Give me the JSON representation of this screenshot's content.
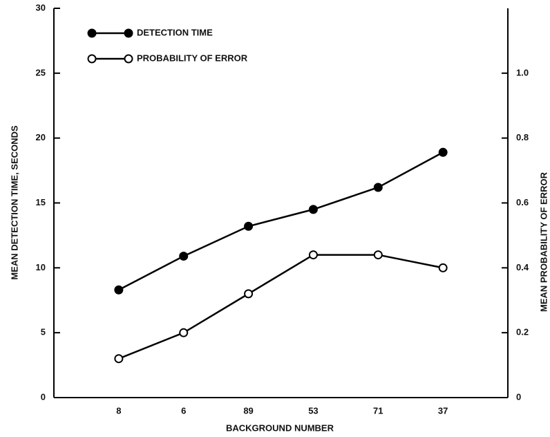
{
  "chart_data": {
    "type": "line",
    "x_label": "BACKGROUND NUMBER",
    "y_label": "MEAN DETECTION TIME, SECONDS",
    "y2_label": "MEAN PROBABILITY OF ERROR",
    "categories": [
      "8",
      "6",
      "89",
      "53",
      "71",
      "37"
    ],
    "series": [
      {
        "name": "DETECTION TIME",
        "color": "#000000",
        "marker": "filled",
        "values": [
          8.3,
          10.9,
          13.2,
          14.5,
          16.2,
          18.9
        ]
      },
      {
        "name": "PROBABILITY OF ERROR",
        "color": "#000000",
        "marker": "open",
        "axis": "y2",
        "values": [
          0.12,
          0.2,
          0.32,
          0.44,
          0.44,
          0.4
        ]
      }
    ],
    "ylim": [
      0,
      30
    ],
    "yticks": [
      0,
      5,
      10,
      15,
      20,
      25,
      30
    ],
    "y2lim": [
      0,
      1.2
    ],
    "y2ticks": [
      0,
      0.2,
      0.4,
      0.6,
      0.8,
      {
        "value": 1.0,
        "label": "1.0"
      }
    ],
    "legend": "upper left",
    "grid": false
  }
}
